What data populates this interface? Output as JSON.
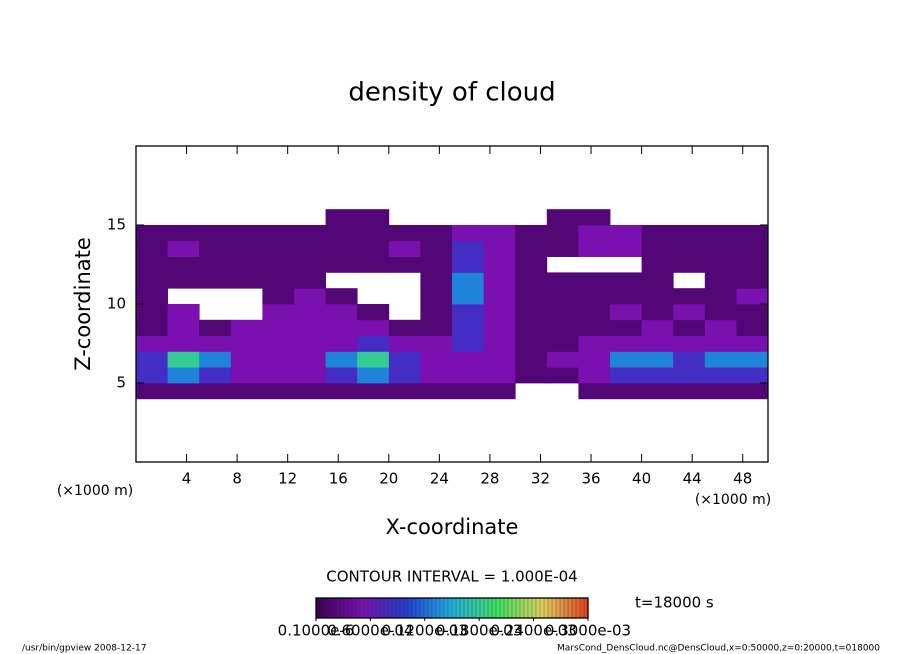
{
  "chart_data": {
    "type": "heatmap",
    "title": "density of cloud",
    "x_label": "X-coordinate",
    "y_label": "Z-coordinate",
    "x_unit": "(×1000 m)",
    "y_unit": "(×1000 m)",
    "xlim": [
      0,
      50
    ],
    "ylim": [
      0,
      20
    ],
    "xticks": [
      4,
      8,
      12,
      16,
      20,
      24,
      28,
      32,
      36,
      40,
      44,
      48
    ],
    "yticks": [
      5,
      10,
      15
    ],
    "xbins": [
      0,
      2.5,
      5,
      7.5,
      10,
      12.5,
      15,
      17.5,
      20,
      22.5,
      25,
      27.5,
      30,
      32.5,
      35,
      37.5,
      40,
      42.5,
      45,
      47.5,
      50
    ],
    "zbins": [
      4,
      5,
      6,
      7,
      8,
      9,
      10,
      11,
      12,
      13,
      14,
      15,
      16
    ],
    "values": [
      [
        2e-05,
        2e-05,
        2e-05,
        2e-05,
        2e-05,
        2e-05,
        2e-05,
        2e-05,
        2e-05,
        2e-05,
        2e-05,
        2e-05,
        null,
        null,
        2e-05,
        2e-05,
        2e-05,
        2e-05,
        2e-05,
        2e-05
      ],
      [
        8e-05,
        0.00013,
        8e-05,
        5e-05,
        5e-05,
        5e-05,
        8e-05,
        0.00013,
        8e-05,
        5e-05,
        5e-05,
        5e-05,
        2e-05,
        2e-05,
        5e-05,
        8e-05,
        8e-05,
        8e-05,
        8e-05,
        8e-05
      ],
      [
        8e-05,
        0.00018,
        0.00013,
        5e-05,
        5e-05,
        5e-05,
        0.00013,
        0.00018,
        8e-05,
        5e-05,
        5e-05,
        5e-05,
        2e-05,
        5e-05,
        5e-05,
        0.00013,
        0.00013,
        8e-05,
        0.00013,
        0.00013
      ],
      [
        5e-05,
        5e-05,
        5e-05,
        5e-05,
        5e-05,
        5e-05,
        5e-05,
        8e-05,
        5e-05,
        5e-05,
        8e-05,
        5e-05,
        2e-05,
        2e-05,
        5e-05,
        5e-05,
        5e-05,
        5e-05,
        5e-05,
        5e-05
      ],
      [
        2e-05,
        5e-05,
        2e-05,
        5e-05,
        5e-05,
        5e-05,
        5e-05,
        5e-05,
        2e-05,
        2e-05,
        8e-05,
        5e-05,
        2e-05,
        2e-05,
        2e-05,
        2e-05,
        5e-05,
        2e-05,
        5e-05,
        2e-05
      ],
      [
        2e-05,
        5e-05,
        null,
        null,
        5e-05,
        5e-05,
        5e-05,
        2e-05,
        null,
        2e-05,
        8e-05,
        5e-05,
        2e-05,
        2e-05,
        2e-05,
        5e-05,
        2e-05,
        5e-05,
        2e-05,
        2e-05
      ],
      [
        2e-05,
        null,
        null,
        null,
        2e-05,
        5e-05,
        2e-05,
        null,
        null,
        2e-05,
        0.00013,
        5e-05,
        2e-05,
        2e-05,
        2e-05,
        2e-05,
        2e-05,
        2e-05,
        2e-05,
        5e-05
      ],
      [
        2e-05,
        2e-05,
        2e-05,
        2e-05,
        2e-05,
        2e-05,
        null,
        null,
        null,
        2e-05,
        0.00013,
        5e-05,
        2e-05,
        2e-05,
        2e-05,
        2e-05,
        2e-05,
        null,
        2e-05,
        2e-05
      ],
      [
        2e-05,
        2e-05,
        2e-05,
        2e-05,
        2e-05,
        2e-05,
        2e-05,
        2e-05,
        2e-05,
        2e-05,
        8e-05,
        5e-05,
        2e-05,
        null,
        null,
        null,
        2e-05,
        2e-05,
        2e-05,
        2e-05
      ],
      [
        2e-05,
        5e-05,
        2e-05,
        2e-05,
        2e-05,
        2e-05,
        2e-05,
        2e-05,
        5e-05,
        2e-05,
        8e-05,
        5e-05,
        2e-05,
        2e-05,
        5e-05,
        5e-05,
        2e-05,
        2e-05,
        2e-05,
        2e-05
      ],
      [
        2e-05,
        2e-05,
        2e-05,
        2e-05,
        2e-05,
        2e-05,
        2e-05,
        2e-05,
        2e-05,
        2e-05,
        5e-05,
        5e-05,
        2e-05,
        2e-05,
        5e-05,
        5e-05,
        2e-05,
        2e-05,
        2e-05,
        2e-05
      ],
      [
        null,
        null,
        null,
        null,
        null,
        null,
        2e-05,
        2e-05,
        null,
        null,
        null,
        null,
        null,
        2e-05,
        2e-05,
        null,
        null,
        null,
        null,
        null
      ]
    ],
    "colormap": [
      "#3a0050",
      "#7a10b0",
      "#2040d0",
      "#20b0e0",
      "#40e060",
      "#e0d060",
      "#e04020"
    ],
    "colorbar_ticks": [
      {
        "value": 1e-07,
        "label": "0.1000e-6"
      },
      {
        "value": 6e-05,
        "label": "0.6000e-04"
      },
      {
        "value": 0.00012,
        "label": "0.1200e-03"
      },
      {
        "value": 0.00018,
        "label": "0.1800e-03"
      },
      {
        "value": 0.00024,
        "label": "0.2400e-03"
      },
      {
        "value": 0.0003,
        "label": "0.3000e-03"
      }
    ],
    "contour_note": "CONTOUR INTERVAL = 1.000E-04",
    "time_label": "t=18000 s",
    "footer_left": "/usr/bin/gpview  2008-12-17",
    "footer_right": "MarsCond_DensCloud.nc@DensCloud,x=0:50000,z=0:20000,t=018000"
  }
}
